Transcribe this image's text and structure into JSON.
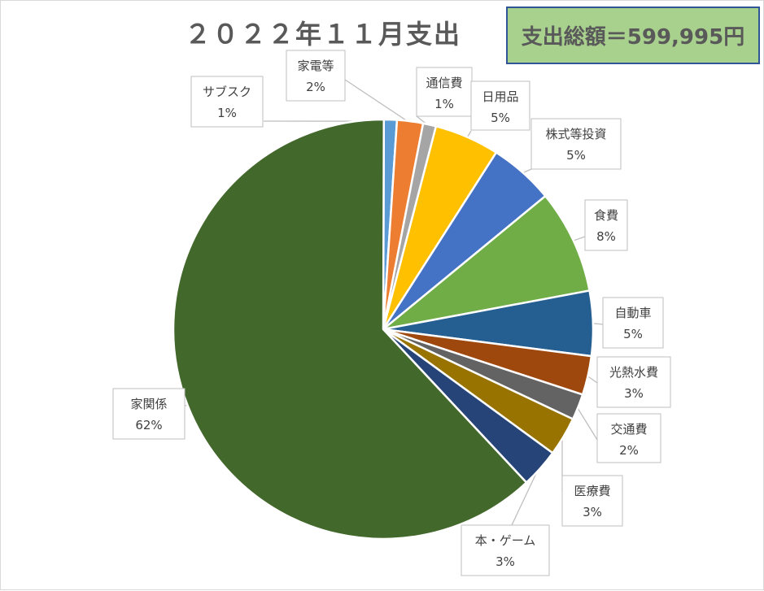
{
  "chart_data": {
    "type": "pie",
    "title": "２０２２年１１月支出",
    "total_label": "支出総額＝599,995円",
    "slices": [
      {
        "name": "サブスク",
        "value": 1,
        "label": "1%",
        "color": "#5b9bd5"
      },
      {
        "name": "家電等",
        "value": 2,
        "label": "2%",
        "color": "#ed7d31"
      },
      {
        "name": "通信費",
        "value": 1,
        "label": "1%",
        "color": "#a5a5a5"
      },
      {
        "name": "日用品",
        "value": 5,
        "label": "5%",
        "color": "#ffc000"
      },
      {
        "name": "株式等投資",
        "value": 5,
        "label": "5%",
        "color": "#4472c4"
      },
      {
        "name": "食費",
        "value": 8,
        "label": "8%",
        "color": "#70ad47"
      },
      {
        "name": "自動車",
        "value": 5,
        "label": "5%",
        "color": "#255e91"
      },
      {
        "name": "光熱水費",
        "value": 3,
        "label": "3%",
        "color": "#9e480e"
      },
      {
        "name": "交通費",
        "value": 2,
        "label": "2%",
        "color": "#636363"
      },
      {
        "name": "医療費",
        "value": 3,
        "label": "3%",
        "color": "#997300"
      },
      {
        "name": "本・ゲーム",
        "value": 3,
        "label": "3%",
        "color": "#264478"
      },
      {
        "name": "家関係",
        "value": 62,
        "label": "62%",
        "color": "#43682b"
      }
    ]
  }
}
